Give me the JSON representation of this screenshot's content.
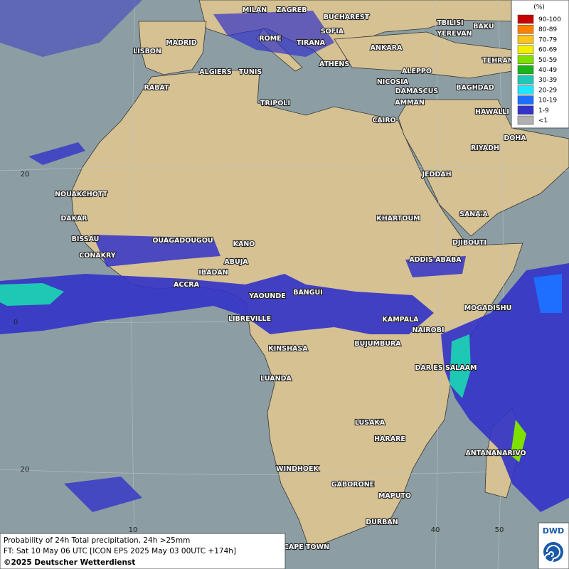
{
  "cities": [
    "MILAN",
    "ZAGREB",
    "BUCHAREST",
    "TBILISI",
    "BAKU",
    "MADRID",
    "ROME",
    "SOFIA",
    "YEREVAN",
    "LISBON",
    "TIRANA",
    "ANKARA",
    "TEHRAN",
    "ALGIERS",
    "TUNIS",
    "ATHENS",
    "ALEPPO",
    "RABAT",
    "NICOSIA",
    "BAGHDAD",
    "TRIPOLI",
    "DAMASCUS",
    "AMMAN",
    "HAWALLI",
    "CAIRO",
    "DOHA",
    "RIYADH",
    "JEDDAH",
    "NOUAKCHOTT",
    "DAKAR",
    "KHARTOUM",
    "SANA'A",
    "BISSAU",
    "OUAGADOUGOU",
    "KANO",
    "DJIBOUTI",
    "CONAKRY",
    "ABUJA",
    "ADDIS ABABA",
    "IBADAN",
    "ACCRA",
    "YAOUNDE",
    "BANGUI",
    "MOGADISHU",
    "LIBREVILLE",
    "KAMPALA",
    "NAIROBI",
    "KINSHASA",
    "BUJUMBURA",
    "DAR ES SALAAM",
    "LUANDA",
    "LUSAKA",
    "HARARE",
    "ANTANANARIVO",
    "WINDHOEK",
    "GABORONE",
    "MAPUTO",
    "DURBAN",
    "CAPE TOWN"
  ],
  "grid_labels": {
    "lat": [
      20,
      0,
      20
    ],
    "lon": [
      10,
      40,
      50
    ]
  },
  "legend": {
    "title": "(%)",
    "items": [
      {
        "label": "90-100",
        "color": "#c80000"
      },
      {
        "label": "80-89",
        "color": "#ff7f00"
      },
      {
        "label": "70-79",
        "color": "#ffc31e"
      },
      {
        "label": "60-69",
        "color": "#f0f000"
      },
      {
        "label": "50-59",
        "color": "#7fe000"
      },
      {
        "label": "40-49",
        "color": "#18b418"
      },
      {
        "label": "30-39",
        "color": "#1ec8b4"
      },
      {
        "label": "20-29",
        "color": "#1ee6ff"
      },
      {
        "label": "10-19",
        "color": "#1e6eff"
      },
      {
        "label": "1-9",
        "color": "#3232c8"
      },
      {
        "label": "<1",
        "color": "#b0b0b0"
      }
    ]
  },
  "info": {
    "line1": "Probability of 24h Total precipitation, 24h >25mm",
    "line2": "FT: Sat 10 May 06 UTC [ICON EPS 2025 May 03 00UTC +174h]",
    "line3": "©2025 Deutscher Wetterdienst"
  },
  "logo": "DWD"
}
